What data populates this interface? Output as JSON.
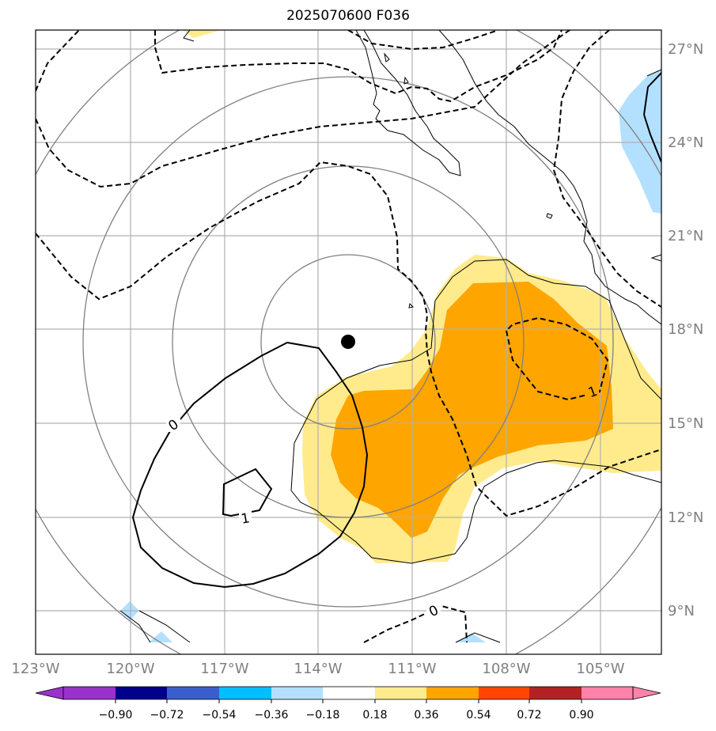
{
  "title": "2025070600 F036",
  "map": {
    "lat_labels": [
      "27°N",
      "24°N",
      "21°N",
      "18°N",
      "15°N",
      "12°N",
      "9°N"
    ],
    "lon_labels": [
      "123°W",
      "120°W",
      "117°W",
      "114°W",
      "111°W",
      "108°W",
      "105°W"
    ],
    "contour_labels": [
      {
        "text": "0"
      },
      {
        "text": "1"
      },
      {
        "text": "1"
      },
      {
        "text": "0"
      }
    ],
    "colors": {
      "grid": "#b0b0b0",
      "range_rings": "#808080",
      "fill_018_036": "#ffeb8c",
      "fill_036_054": "#ffa500",
      "fill_neg_018_036": "#b3e0ff"
    },
    "center_marker": "storm-center-dot"
  },
  "colorbar": {
    "ticks": [
      "−0.90",
      "−0.72",
      "−0.54",
      "−0.36",
      "−0.18",
      "0.18",
      "0.36",
      "0.54",
      "0.72",
      "0.90"
    ],
    "colors": [
      "#9932cc",
      "#00008b",
      "#3a5fcd",
      "#00bfff",
      "#b3e0ff",
      "#ffffff",
      "#ffeb8c",
      "#ffa500",
      "#ff4500",
      "#b22222",
      "#ff82ab"
    ]
  }
}
